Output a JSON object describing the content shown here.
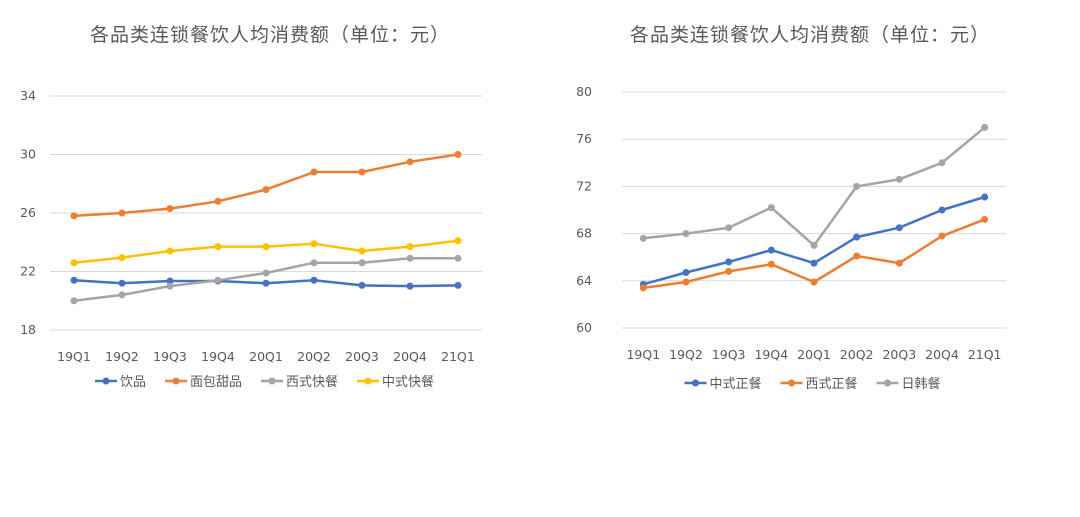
{
  "chart_data": [
    {
      "type": "line",
      "title": "各品类连锁餐饮人均消费额（单位：元）",
      "categories": [
        "19Q1",
        "19Q2",
        "19Q3",
        "19Q4",
        "20Q1",
        "20Q2",
        "20Q3",
        "20Q4",
        "21Q1"
      ],
      "ylim": [
        18,
        34
      ],
      "yticks": [
        18,
        22,
        26,
        30,
        34
      ],
      "grid": true,
      "legend_position": "bottom",
      "series": [
        {
          "name": "饮品",
          "color": "#4472C4",
          "values": [
            21.4,
            21.2,
            21.35,
            21.35,
            21.2,
            21.4,
            21.05,
            21.0,
            21.05
          ]
        },
        {
          "name": "面包甜品",
          "color": "#ED7D31",
          "values": [
            25.8,
            26.0,
            26.3,
            26.8,
            27.6,
            28.8,
            28.8,
            29.5,
            30.0
          ]
        },
        {
          "name": "西式快餐",
          "color": "#A5A5A5",
          "values": [
            20.0,
            20.4,
            21.0,
            21.4,
            21.9,
            22.6,
            22.6,
            22.9,
            22.9
          ]
        },
        {
          "name": "中式快餐",
          "color": "#FFC000",
          "values": [
            22.6,
            22.95,
            23.4,
            23.7,
            23.7,
            23.9,
            23.4,
            23.7,
            24.1
          ]
        }
      ]
    },
    {
      "type": "line",
      "title": "各品类连锁餐饮人均消费额（单位：元）",
      "categories": [
        "19Q1",
        "19Q2",
        "19Q3",
        "19Q4",
        "20Q1",
        "20Q2",
        "20Q3",
        "20Q4",
        "21Q1"
      ],
      "ylim": [
        60,
        80
      ],
      "yticks": [
        60,
        64,
        68,
        72,
        76,
        80
      ],
      "grid": true,
      "legend_position": "bottom",
      "series": [
        {
          "name": "中式正餐",
          "color": "#4472C4",
          "values": [
            63.7,
            64.7,
            65.6,
            66.6,
            65.5,
            67.7,
            68.5,
            70.0,
            71.1
          ]
        },
        {
          "name": "西式正餐",
          "color": "#ED7D31",
          "values": [
            63.4,
            63.9,
            64.8,
            65.4,
            63.9,
            66.1,
            65.5,
            67.8,
            69.2
          ]
        },
        {
          "name": "日韩餐",
          "color": "#A5A5A5",
          "values": [
            67.6,
            68.0,
            68.5,
            70.2,
            67.0,
            72.0,
            72.6,
            74.0,
            77.0
          ]
        }
      ]
    }
  ]
}
